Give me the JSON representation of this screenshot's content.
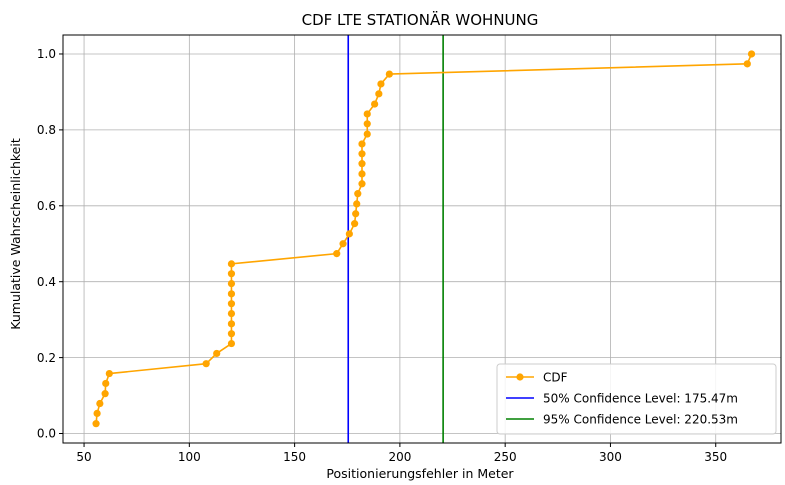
{
  "chart_data": {
    "type": "line",
    "title": "CDF LTE STATIONÄR WOHNUNG",
    "xlabel": "Positionierungsfehler in Meter",
    "ylabel": "Kumulative Wahrscheinlichkeit",
    "xlim": [
      40,
      381
    ],
    "ylim": [
      -0.025,
      1.05
    ],
    "xticks": [
      50,
      100,
      150,
      200,
      250,
      300,
      350
    ],
    "yticks": [
      0.0,
      0.2,
      0.4,
      0.6,
      0.8,
      1.0
    ],
    "xtick_labels": [
      "50",
      "100",
      "150",
      "200",
      "250",
      "300",
      "350"
    ],
    "ytick_labels": [
      "0.0",
      "0.2",
      "0.4",
      "0.6",
      "0.8",
      "1.0"
    ],
    "grid": true,
    "legend_position": "lower-right",
    "series": [
      {
        "name": "CDF",
        "color": "#ffa500",
        "marker": "circle",
        "x": [
          55.7,
          56.2,
          57.5,
          60.0,
          60.3,
          62.0,
          108.0,
          113.0,
          120.0,
          120.0,
          120.0,
          120.0,
          120.0,
          120.0,
          120.0,
          120.0,
          120.0,
          170.0,
          173.0,
          176.0,
          178.5,
          179.0,
          179.5,
          180.0,
          182.0,
          182.0,
          182.0,
          182.0,
          182.0,
          184.5,
          184.5,
          184.5,
          188.0,
          190.0,
          191.0,
          195.0,
          365.0,
          367.0
        ],
        "y": [
          0.026,
          0.053,
          0.079,
          0.105,
          0.132,
          0.158,
          0.184,
          0.211,
          0.237,
          0.263,
          0.289,
          0.316,
          0.342,
          0.368,
          0.395,
          0.421,
          0.447,
          0.474,
          0.5,
          0.526,
          0.553,
          0.579,
          0.605,
          0.632,
          0.658,
          0.684,
          0.711,
          0.737,
          0.763,
          0.789,
          0.816,
          0.842,
          0.868,
          0.895,
          0.921,
          0.947,
          0.974,
          1.0
        ]
      }
    ],
    "vlines": [
      {
        "name": "50% Confidence Level: 175.47m",
        "x": 175.47,
        "color": "#0000ff"
      },
      {
        "name": "95% Confidence Level: 220.53m",
        "x": 220.53,
        "color": "#008000"
      }
    ]
  }
}
